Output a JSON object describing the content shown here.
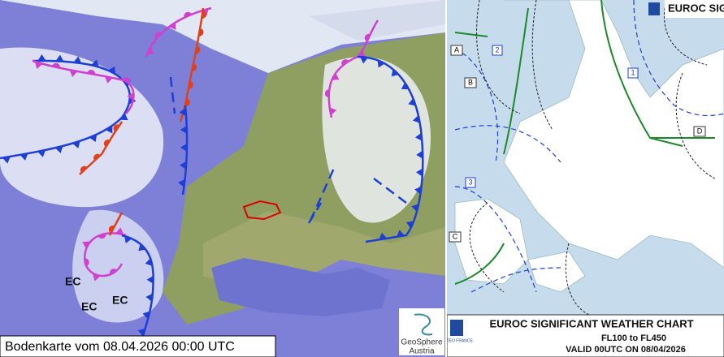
{
  "left_map": {
    "caption": "Bodenkarte vom 08.04.2026 00:00 UTC",
    "labels": [
      "EC",
      "EC",
      "EC"
    ],
    "logo": {
      "line1": "GeoSphere",
      "line2": "Austria"
    }
  },
  "right_chart": {
    "header": "EUROC SIGN",
    "areas": [
      "A",
      "B",
      "C",
      "D",
      "1",
      "2",
      "3"
    ],
    "footer": {
      "title": "EUROC SIGNIFICANT WEATHER CHART",
      "levels": "FL100 to FL450",
      "valid": "VALID 00UTC ON 08/04/2026",
      "issuer": "METEO FRANCE"
    }
  }
}
